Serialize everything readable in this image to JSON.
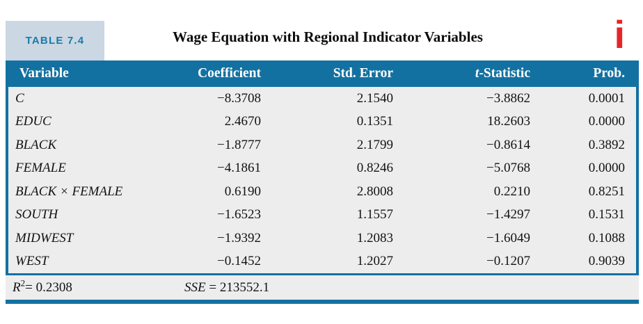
{
  "colors": {
    "accent_blue": "#1371A1",
    "label_bg": "#CBD7E2",
    "label_text": "#1A7AAB",
    "body_bg": "#EDEDED",
    "header_text": "#FFFFFF",
    "info_red": "#E62429",
    "text": "#131313"
  },
  "table": {
    "label": "TABLE 7.4",
    "title": "Wage Equation with Regional Indicator Variables",
    "info_icon_glyph": "i",
    "columns": {
      "variable": "Variable",
      "coefficient": "Coefficient",
      "std_error": "Std. Error",
      "t_statistic_italic": "t",
      "t_statistic_rest": "-Statistic",
      "prob": "Prob."
    },
    "rows": [
      {
        "variable": "C",
        "coefficient": "−8.3708",
        "std_error": "2.1540",
        "t_statistic": "−3.8862",
        "prob": "0.0001"
      },
      {
        "variable": "EDUC",
        "coefficient": "2.4670",
        "std_error": "0.1351",
        "t_statistic": "18.2603",
        "prob": "0.0000"
      },
      {
        "variable": "BLACK",
        "coefficient": "−1.8777",
        "std_error": "2.1799",
        "t_statistic": "−0.8614",
        "prob": "0.3892"
      },
      {
        "variable": "FEMALE",
        "coefficient": "−4.1861",
        "std_error": "0.8246",
        "t_statistic": "−5.0768",
        "prob": "0.0000"
      },
      {
        "variable": "BLACK × FEMALE",
        "coefficient": "0.6190",
        "std_error": "2.8008",
        "t_statistic": "0.2210",
        "prob": "0.8251"
      },
      {
        "variable": "SOUTH",
        "coefficient": "−1.6523",
        "std_error": "1.1557",
        "t_statistic": "−1.4297",
        "prob": "0.1531"
      },
      {
        "variable": "MIDWEST",
        "coefficient": "−1.9392",
        "std_error": "1.2083",
        "t_statistic": "−1.6049",
        "prob": "0.1088"
      },
      {
        "variable": "WEST",
        "coefficient": "−0.1452",
        "std_error": "1.2027",
        "t_statistic": "−0.1207",
        "prob": "0.9039"
      }
    ],
    "footer": {
      "r2_var": "R",
      "r2_sup": "2",
      "r2_rest": "= 0.2308",
      "sse_var": "SSE",
      "sse_rest": " = 213552.1"
    }
  }
}
